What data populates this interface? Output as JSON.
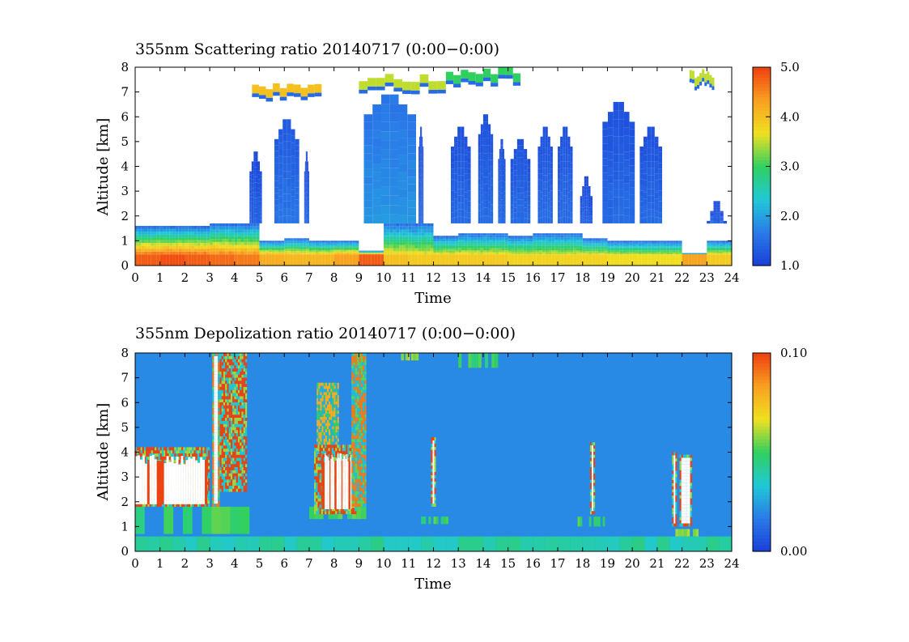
{
  "chart_data": [
    {
      "type": "heatmap",
      "title": "355nm Scattering ratio  20140717 (0:00−0:00)",
      "xlabel": "Time",
      "ylabel": "Altitude [km]",
      "xlim": [
        0,
        24
      ],
      "ylim": [
        0,
        8
      ],
      "x_ticks": [
        "0",
        "1",
        "2",
        "3",
        "4",
        "5",
        "6",
        "7",
        "8",
        "9",
        "10",
        "11",
        "12",
        "13",
        "14",
        "15",
        "16",
        "17",
        "18",
        "19",
        "20",
        "21",
        "22",
        "23",
        "24"
      ],
      "y_ticks": [
        "0",
        "1",
        "2",
        "3",
        "4",
        "5",
        "6",
        "7",
        "8"
      ],
      "colorbar": {
        "range": [
          1.0,
          5.0
        ],
        "ticks": [
          "1.0",
          "2.0",
          "3.0",
          "4.0",
          "5.0"
        ]
      },
      "colormap": [
        "#1a3fd8",
        "#2a7ae8",
        "#20c8d8",
        "#30d060",
        "#f0e020",
        "#f8a020",
        "#f04010"
      ],
      "missing_color": "#ffffff",
      "surface_layer": {
        "top_km": [
          1.6,
          1.6,
          1.6,
          1.7,
          1.7,
          1.0,
          1.1,
          1.0,
          1.0,
          0.6,
          1.7,
          1.7,
          1.2,
          1.3,
          1.3,
          1.2,
          1.3,
          1.3,
          1.1,
          1.0,
          1.0,
          1.0,
          0.5,
          1.0
        ],
        "max_ratio": [
          4.5,
          4.6,
          4.5,
          4.4,
          4.3,
          3.9,
          3.8,
          3.8,
          4.0,
          4.5,
          3.7,
          3.6,
          3.6,
          3.6,
          3.6,
          3.5,
          3.5,
          3.5,
          3.5,
          3.4,
          3.4,
          3.4,
          4.0,
          3.6
        ]
      },
      "cloud_columns": [
        {
          "x": [
            4.6,
            5.1
          ],
          "top_km": 5.0,
          "ratio": 1.4
        },
        {
          "x": [
            5.6,
            6.6
          ],
          "top_km": 6.3,
          "ratio": 1.6
        },
        {
          "x": [
            6.8,
            7.0
          ],
          "top_km": 5.0,
          "ratio": 1.4
        },
        {
          "x": [
            9.2,
            11.3
          ],
          "top_km": 7.3,
          "ratio": 1.9
        },
        {
          "x": [
            11.4,
            11.6
          ],
          "top_km": 6.0,
          "ratio": 1.4
        },
        {
          "x": [
            12.7,
            13.5
          ],
          "top_km": 6.0,
          "ratio": 1.5
        },
        {
          "x": [
            13.8,
            14.4
          ],
          "top_km": 6.5,
          "ratio": 1.5
        },
        {
          "x": [
            14.6,
            14.9
          ],
          "top_km": 5.5,
          "ratio": 1.5
        },
        {
          "x": [
            15.1,
            15.9
          ],
          "top_km": 5.5,
          "ratio": 1.5
        },
        {
          "x": [
            16.2,
            16.8
          ],
          "top_km": 6.0,
          "ratio": 1.5
        },
        {
          "x": [
            17.0,
            17.6
          ],
          "top_km": 6.0,
          "ratio": 1.5
        },
        {
          "x": [
            17.9,
            18.4
          ],
          "top_km": 4.0,
          "ratio": 1.4
        },
        {
          "x": [
            18.8,
            20.1
          ],
          "top_km": 7.0,
          "ratio": 1.5
        },
        {
          "x": [
            20.3,
            21.2
          ],
          "top_km": 6.0,
          "ratio": 1.5
        },
        {
          "x": [
            23.0,
            23.8
          ],
          "top_km": 3.0,
          "ratio": 1.4
        }
      ],
      "high_clouds": [
        {
          "x": [
            4.7,
            7.5
          ],
          "bottom_km": 6.8,
          "ratio": 4.0
        },
        {
          "x": [
            9.0,
            12.5
          ],
          "bottom_km": 7.2,
          "ratio": 3.5
        },
        {
          "x": [
            12.5,
            15.5
          ],
          "bottom_km": 7.5,
          "ratio": 3.0
        },
        {
          "x": [
            22.3,
            23.3
          ],
          "bottom_km": 7.4,
          "ratio": 3.5
        }
      ]
    },
    {
      "type": "heatmap",
      "title": "355nm Depolization ratio  20140717 (0:00−0:00)",
      "xlabel": "Time",
      "ylabel": "Altitude [km]",
      "xlim": [
        0,
        24
      ],
      "ylim": [
        0,
        8
      ],
      "x_ticks": [
        "0",
        "1",
        "2",
        "3",
        "4",
        "5",
        "6",
        "7",
        "8",
        "9",
        "10",
        "11",
        "12",
        "13",
        "14",
        "15",
        "16",
        "17",
        "18",
        "19",
        "20",
        "21",
        "22",
        "23",
        "24"
      ],
      "y_ticks": [
        "0",
        "1",
        "2",
        "3",
        "4",
        "5",
        "6",
        "7",
        "8"
      ],
      "colorbar": {
        "range": [
          0.0,
          0.1
        ],
        "ticks": [
          "0.00",
          "0.10"
        ]
      },
      "colormap": [
        "#1a3fd8",
        "#2a7ae8",
        "#20c8d8",
        "#30d060",
        "#f0e020",
        "#f8a020",
        "#f04010"
      ],
      "missing_color": "#ffffff",
      "background_ratio": 0.02,
      "dust_bands": [
        {
          "x": [
            0.0,
            3.0
          ],
          "bottom_km": 1.8,
          "top_km": 4.2,
          "ratio": 0.1
        },
        {
          "x": [
            3.1,
            3.4
          ],
          "bottom_km": 1.8,
          "top_km": 8.0,
          "ratio": 0.09
        },
        {
          "x": [
            3.4,
            4.5
          ],
          "bottom_km": 2.4,
          "top_km": 8.0,
          "ratio": 0.1
        },
        {
          "x": [
            7.2,
            8.9
          ],
          "bottom_km": 1.5,
          "top_km": 4.3,
          "ratio": 0.1
        },
        {
          "x": [
            7.3,
            8.2
          ],
          "bottom_km": 4.3,
          "top_km": 6.8,
          "ratio": 0.08
        },
        {
          "x": [
            8.7,
            9.3
          ],
          "bottom_km": 1.8,
          "top_km": 8.0,
          "ratio": 0.09
        },
        {
          "x": [
            11.9,
            12.1
          ],
          "bottom_km": 1.8,
          "top_km": 4.6,
          "ratio": 0.1
        },
        {
          "x": [
            18.3,
            18.5
          ],
          "bottom_km": 1.5,
          "top_km": 4.4,
          "ratio": 0.1
        },
        {
          "x": [
            21.6,
            21.8
          ],
          "bottom_km": 1.0,
          "top_km": 4.0,
          "ratio": 0.1
        },
        {
          "x": [
            21.9,
            22.4
          ],
          "bottom_km": 1.0,
          "top_km": 3.9,
          "ratio": 0.1
        }
      ],
      "low_patches": [
        {
          "x": [
            0.0,
            4.6
          ],
          "bottom_km": 0.7,
          "top_km": 1.8,
          "ratio": 0.05
        },
        {
          "x": [
            7.0,
            9.3
          ],
          "bottom_km": 1.3,
          "top_km": 1.8,
          "ratio": 0.05
        },
        {
          "x": [
            11.4,
            12.6
          ],
          "bottom_km": 1.1,
          "top_km": 1.4,
          "ratio": 0.05
        },
        {
          "x": [
            17.8,
            18.9
          ],
          "bottom_km": 1.0,
          "top_km": 1.4,
          "ratio": 0.05
        },
        {
          "x": [
            21.5,
            22.9
          ],
          "bottom_km": 0.6,
          "top_km": 0.9,
          "ratio": 0.06
        },
        {
          "x": [
            10.7,
            11.4
          ],
          "bottom_km": 7.7,
          "top_km": 8.0,
          "ratio": 0.06
        },
        {
          "x": [
            13.0,
            14.6
          ],
          "bottom_km": 7.4,
          "top_km": 8.0,
          "ratio": 0.05
        }
      ]
    }
  ]
}
